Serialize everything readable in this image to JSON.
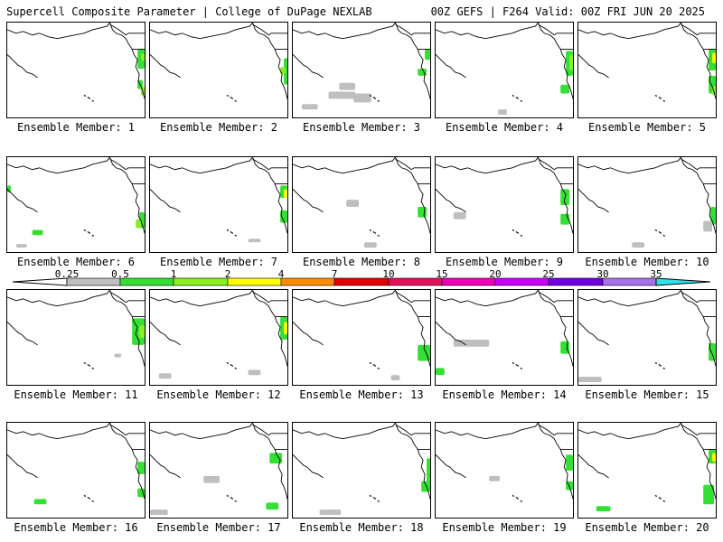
{
  "header": {
    "left": "Supercell Composite Parameter | College of DuPage NEXLAB",
    "right": "00Z GEFS | F264 Valid: 00Z FRI JUN 20 2025"
  },
  "legend": {
    "ticks": [
      "0.25",
      "0.5",
      "1",
      "2",
      "4",
      "7",
      "10",
      "15",
      "20",
      "25",
      "30",
      "35"
    ],
    "colors": [
      "#bfbfbf",
      "#33e033",
      "#88f020",
      "#ffff00",
      "#ff8c00",
      "#e00000",
      "#e0105a",
      "#ee00bb",
      "#cc00ff",
      "#7000e0",
      "#a870e8",
      "#30e0e8"
    ]
  },
  "members": [
    {
      "label": "Ensemble Member: 1"
    },
    {
      "label": "Ensemble Member: 2"
    },
    {
      "label": "Ensemble Member: 3"
    },
    {
      "label": "Ensemble Member: 4"
    },
    {
      "label": "Ensemble Member: 5"
    },
    {
      "label": "Ensemble Member: 6"
    },
    {
      "label": "Ensemble Member: 7"
    },
    {
      "label": "Ensemble Member: 8"
    },
    {
      "label": "Ensemble Member: 9"
    },
    {
      "label": "Ensemble Member: 10"
    },
    {
      "label": "Ensemble Member: 11"
    },
    {
      "label": "Ensemble Member: 12"
    },
    {
      "label": "Ensemble Member: 13"
    },
    {
      "label": "Ensemble Member: 14"
    },
    {
      "label": "Ensemble Member: 15"
    },
    {
      "label": "Ensemble Member: 16"
    },
    {
      "label": "Ensemble Member: 17"
    },
    {
      "label": "Ensemble Member: 18"
    },
    {
      "label": "Ensemble Member: 19"
    },
    {
      "label": "Ensemble Member: 20"
    }
  ]
}
